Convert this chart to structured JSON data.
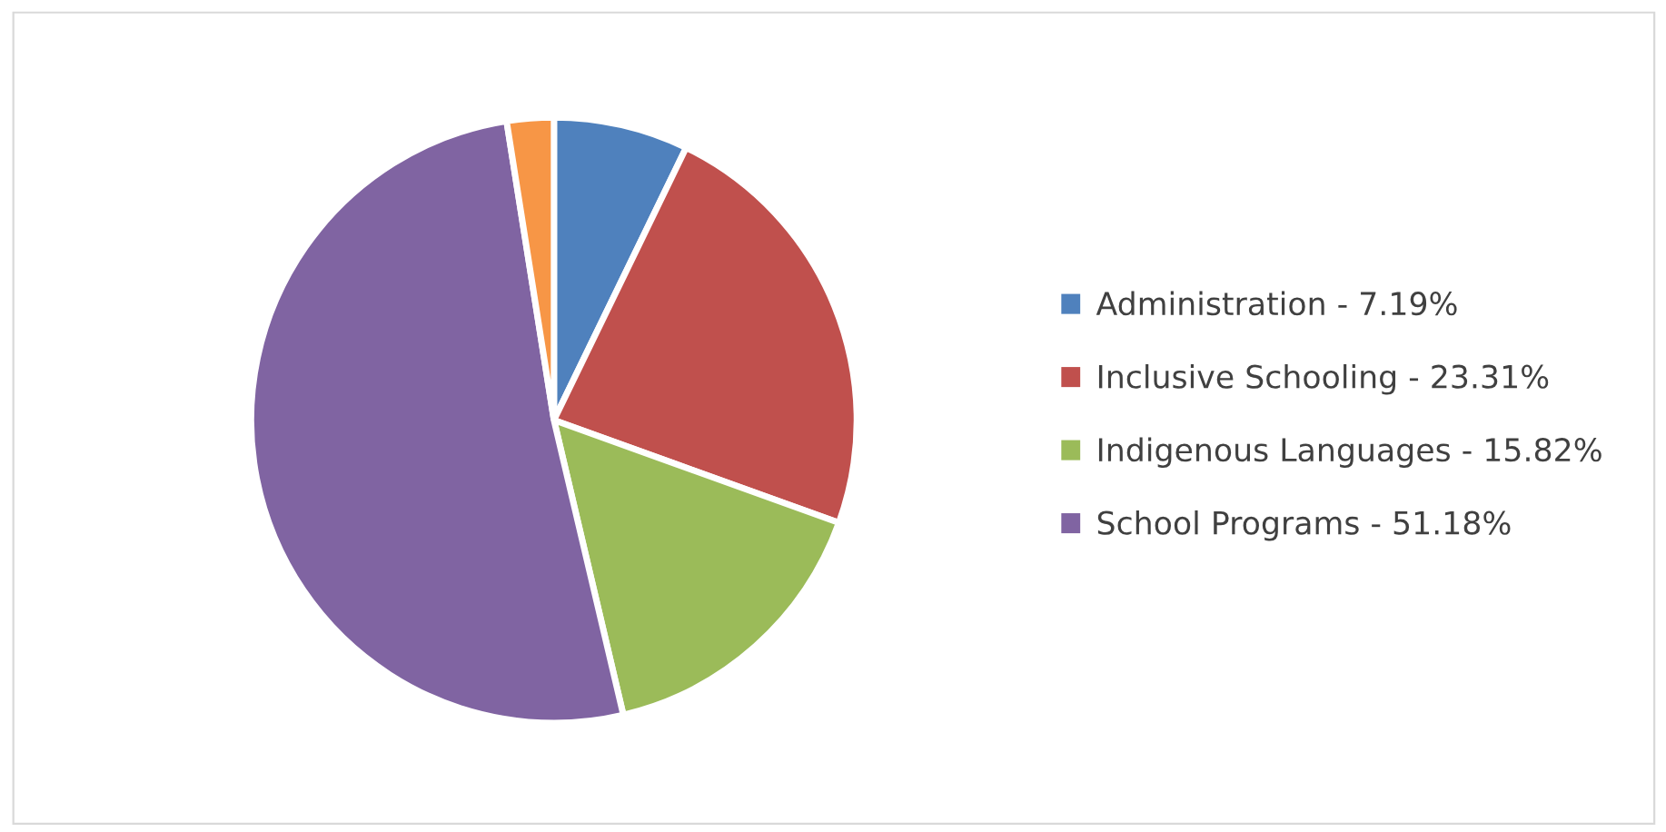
{
  "chart_data": {
    "type": "pie",
    "categories": [
      "Administration - 7.19%",
      "Inclusive Schooling - 23.31%",
      "Indigenous Languages - 15.82%",
      "School Programs - 51.18%",
      null
    ],
    "values": [
      7.19,
      23.31,
      15.82,
      51.18,
      2.5
    ],
    "colors": [
      "#4f81bd",
      "#c0504d",
      "#9bbb59",
      "#8064a2",
      "#f79646"
    ],
    "legend": "right"
  }
}
